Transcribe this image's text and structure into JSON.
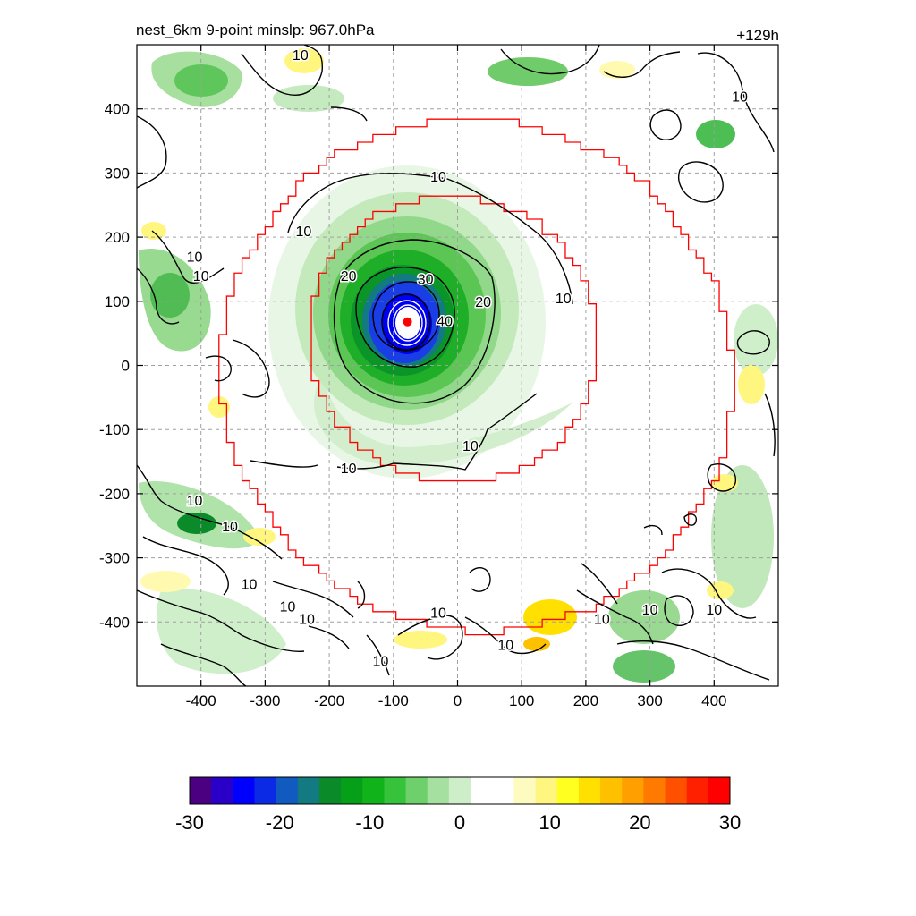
{
  "title_left": "nest_6km  9-point minslp: 967.0hPa",
  "title_right": "+129h",
  "colors": {
    "ring": "#ff0000",
    "contour": "#000000",
    "eye_contour": "#ffffff",
    "grid": "#a0a0a0",
    "center_marker": "#ff0000"
  },
  "chart_data": {
    "type": "heatmap",
    "title": "nest_6km  9-point minslp: 967.0hPa",
    "forecast_hour_label": "+129h",
    "xlim": [
      -500,
      500
    ],
    "ylim": [
      -500,
      500
    ],
    "xticks": [
      -400,
      -300,
      -200,
      -100,
      0,
      100,
      200,
      300,
      400
    ],
    "yticks": [
      -400,
      -300,
      -200,
      -100,
      0,
      100,
      200,
      300,
      400
    ],
    "grid": "dashed",
    "storm_center": [
      -78,
      68
    ],
    "colorbar": {
      "min": -30,
      "max": 30,
      "ticks": [
        -30,
        -20,
        -10,
        0,
        10,
        20,
        30
      ],
      "palette": [
        "#4b0082",
        "#2a00c8",
        "#0000ff",
        "#0a2ae6",
        "#105ac0",
        "#127a80",
        "#0b8a2a",
        "#06a018",
        "#10b41a",
        "#36c23a",
        "#6ed06a",
        "#a6e0a0",
        "#cdeec8",
        "#ffffff",
        "#ffffff",
        "#fdfbc0",
        "#fff680",
        "#ffff20",
        "#ffe000",
        "#ffc000",
        "#ffa000",
        "#ff7a00",
        "#ff5000",
        "#ff2000",
        "#ff0000"
      ]
    },
    "contour_labels": [
      {
        "text": "10",
        "x": -30,
        "y": 295
      },
      {
        "text": "10",
        "x": -240,
        "y": 210
      },
      {
        "text": "10",
        "x": -410,
        "y": 170
      },
      {
        "text": "10",
        "x": -400,
        "y": 140
      },
      {
        "text": "10",
        "x": -170,
        "y": -160
      },
      {
        "text": "10",
        "x": 20,
        "y": -125
      },
      {
        "text": "10",
        "x": 165,
        "y": 105
      },
      {
        "text": "20",
        "x": -170,
        "y": 140
      },
      {
        "text": "30",
        "x": -50,
        "y": 135
      },
      {
        "text": "20",
        "x": 40,
        "y": 100
      },
      {
        "text": "40",
        "x": -20,
        "y": 70
      },
      {
        "text": "10",
        "x": -245,
        "y": 485
      },
      {
        "text": "10",
        "x": 440,
        "y": 420
      },
      {
        "text": "10",
        "x": -410,
        "y": -210
      },
      {
        "text": "10",
        "x": -355,
        "y": -250
      },
      {
        "text": "10",
        "x": -325,
        "y": -340
      },
      {
        "text": "10",
        "x": -265,
        "y": -375
      },
      {
        "text": "10",
        "x": -235,
        "y": -395
      },
      {
        "text": "10",
        "x": -30,
        "y": -385
      },
      {
        "text": "10",
        "x": 75,
        "y": -435
      },
      {
        "text": "10",
        "x": -120,
        "y": -460
      },
      {
        "text": "10",
        "x": 225,
        "y": -395
      },
      {
        "text": "10",
        "x": 300,
        "y": -380
      },
      {
        "text": "10",
        "x": 400,
        "y": -380
      }
    ]
  }
}
